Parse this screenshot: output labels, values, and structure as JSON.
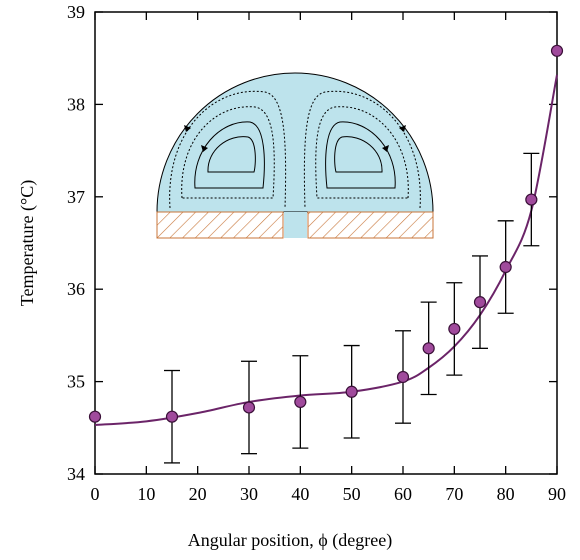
{
  "chart_data": {
    "type": "errorbar",
    "xlabel": "Angular position, ϕ (degree)",
    "ylabel": "Temperature (°C)",
    "xlim": [
      0,
      90
    ],
    "ylim": [
      34,
      39
    ],
    "xticks": [
      0,
      10,
      20,
      30,
      40,
      50,
      60,
      70,
      80,
      90
    ],
    "yticks": [
      34,
      35,
      36,
      37,
      38,
      39
    ],
    "series": [
      {
        "color": "#a04a9c",
        "x": [
          0,
          15,
          30,
          40,
          50,
          60,
          65,
          70,
          75,
          80,
          85,
          90
        ],
        "values": [
          34.62,
          34.62,
          34.72,
          34.78,
          34.89,
          35.05,
          35.36,
          35.57,
          35.86,
          36.24,
          36.97,
          38.58
        ],
        "errors": [
          null,
          0.5,
          0.5,
          0.5,
          0.5,
          0.5,
          0.5,
          0.5,
          0.5,
          0.5,
          0.5,
          null
        ]
      },
      {
        "color": "#6b2468",
        "x": [
          0,
          10,
          20,
          30,
          40,
          50,
          60,
          65,
          70,
          75,
          80,
          85,
          90
        ],
        "values": [
          34.53,
          34.57,
          34.66,
          34.78,
          34.85,
          34.89,
          35.0,
          35.15,
          35.38,
          35.72,
          36.2,
          36.85,
          38.32
        ]
      }
    ]
  }
}
